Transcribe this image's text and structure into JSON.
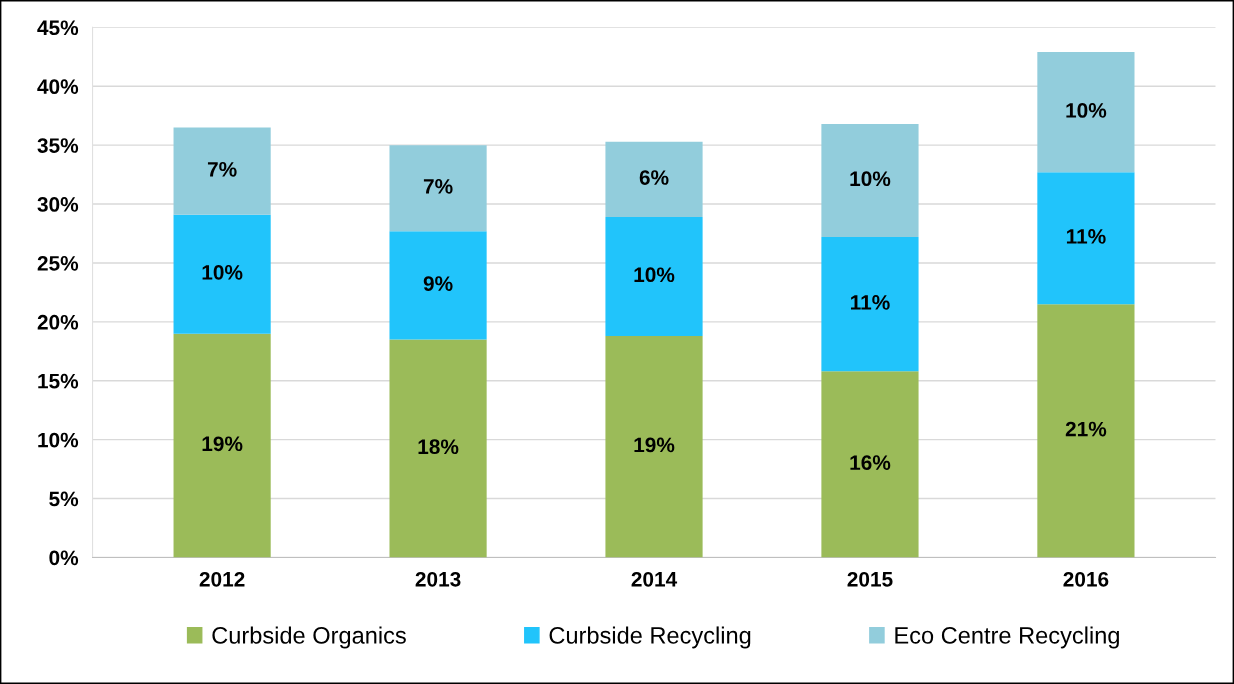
{
  "chart_data": {
    "type": "bar",
    "stacked": true,
    "categories": [
      "2012",
      "2013",
      "2014",
      "2015",
      "2016"
    ],
    "series": [
      {
        "name": "Curbside Organics",
        "color": "#9bbb59",
        "values": [
          19.0,
          18.5,
          18.8,
          15.8,
          21.5
        ],
        "value_labels": [
          "19%",
          "18%",
          "19%",
          "16%",
          "21%"
        ]
      },
      {
        "name": "Curbside Recycling",
        "color": "#21c4fb",
        "values": [
          10.1,
          9.2,
          10.1,
          11.4,
          11.2
        ],
        "value_labels": [
          "10%",
          "9%",
          "10%",
          "11%",
          "11%"
        ]
      },
      {
        "name": "Eco Centre Recycling",
        "color": "#92cddc",
        "values": [
          7.4,
          7.3,
          6.4,
          9.6,
          10.2
        ],
        "value_labels": [
          "7%",
          "7%",
          "6%",
          "10%",
          "10%"
        ]
      }
    ],
    "ylim": [
      0,
      45
    ],
    "yticks": [
      {
        "value": 0,
        "label": "0%"
      },
      {
        "value": 5,
        "label": "5%"
      },
      {
        "value": 10,
        "label": "10%"
      },
      {
        "value": 15,
        "label": "15%"
      },
      {
        "value": 20,
        "label": "20%"
      },
      {
        "value": 25,
        "label": "25%"
      },
      {
        "value": 30,
        "label": "30%"
      },
      {
        "value": 35,
        "label": "35%"
      },
      {
        "value": 40,
        "label": "40%"
      },
      {
        "value": 45,
        "label": "45%"
      }
    ],
    "grid": "y",
    "legend": "bottom"
  }
}
